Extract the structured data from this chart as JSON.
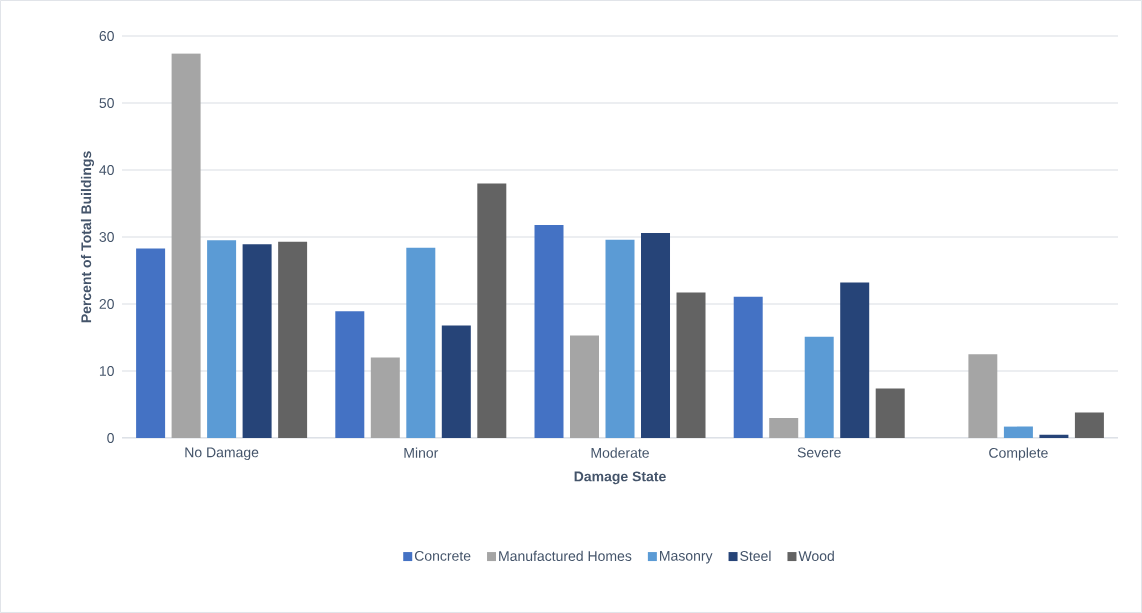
{
  "chart_data": {
    "type": "bar",
    "xlabel": "Damage State",
    "ylabel": "Percent of Total Buildings",
    "categories": [
      "No Damage",
      "Minor",
      "Moderate",
      "Severe",
      "Complete"
    ],
    "series": [
      {
        "name": "Concrete",
        "color": "#4472c4",
        "values": [
          28.3,
          18.9,
          31.8,
          21.1,
          0
        ]
      },
      {
        "name": "Manufactured Homes",
        "color": "#a5a5a5",
        "values": [
          57.4,
          12.0,
          15.3,
          3.0,
          12.5
        ]
      },
      {
        "name": "Masonry",
        "color": "#5b9bd5",
        "values": [
          29.5,
          28.4,
          29.6,
          15.1,
          1.7
        ]
      },
      {
        "name": "Steel",
        "color": "#264478",
        "values": [
          28.9,
          16.8,
          30.6,
          23.2,
          0.5
        ]
      },
      {
        "name": "Wood",
        "color": "#636363",
        "values": [
          29.3,
          38.0,
          21.7,
          7.4,
          3.8
        ]
      }
    ],
    "ylim": [
      0,
      60
    ],
    "yticks": [
      0,
      10,
      20,
      30,
      40,
      50,
      60
    ],
    "grid": "y",
    "legend": "bottom"
  }
}
